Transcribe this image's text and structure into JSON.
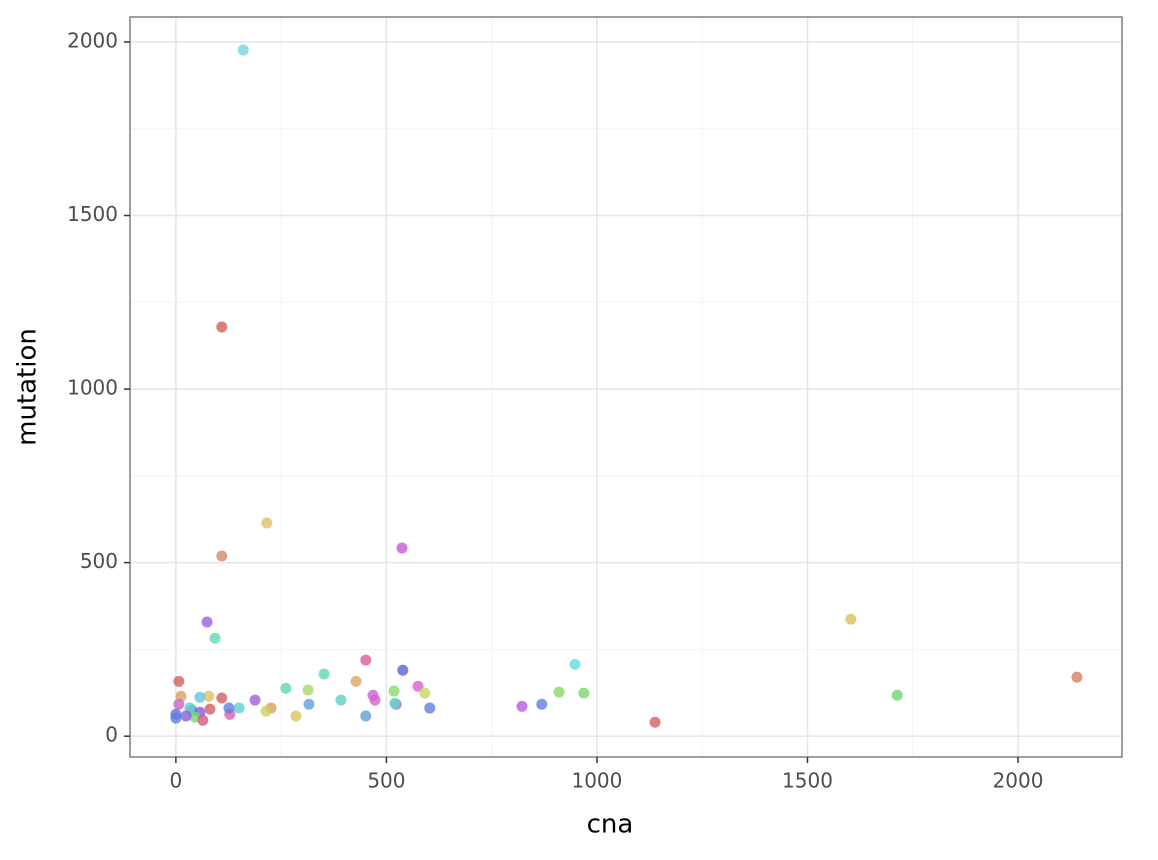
{
  "chart_data": {
    "type": "scatter",
    "xlabel": "cna",
    "ylabel": "mutation",
    "xlim": [
      -109,
      2247
    ],
    "ylim": [
      -60,
      2072
    ],
    "xticks": [
      0,
      500,
      1000,
      1500,
      2000
    ],
    "yticks": [
      0,
      500,
      1000,
      1500,
      2000
    ],
    "grid": true,
    "series": [
      {
        "x": [
          160,
          109,
          216,
          109,
          537,
          74,
          93,
          1603,
          2140,
          1713,
          1138,
          948,
          969,
          910,
          869,
          822,
          539,
          451,
          428,
          352,
          261,
          314,
          392,
          316,
          285,
          226,
          214,
          188,
          150,
          128,
          126,
          109,
          78,
          81,
          57,
          7,
          12,
          7,
          0,
          0,
          38,
          57,
          45,
          64,
          33,
          24,
          451,
          473,
          468,
          518,
          523,
          575,
          591,
          603,
          520
        ],
        "values": [
          1977,
          1179,
          614,
          519,
          542,
          329,
          282,
          337,
          170,
          118,
          40,
          207,
          124,
          127,
          92,
          86,
          190,
          219,
          158,
          179,
          138,
          133,
          104,
          92,
          58,
          81,
          72,
          104,
          81,
          63,
          81,
          110,
          115,
          78,
          112,
          158,
          115,
          92,
          63,
          52,
          75,
          69,
          55,
          46,
          81,
          58,
          58,
          104,
          118,
          130,
          92,
          144,
          124,
          81,
          95
        ],
        "colors": [
          "#6fd6dc",
          "#d25f5f",
          "#dcc060",
          "#d58a5f",
          "#c858d8",
          "#a05cdc",
          "#62d8b4",
          "#dcc060",
          "#d57f5f",
          "#6ed86a",
          "#d25f5f",
          "#62dcdc",
          "#78d86a",
          "#8ad86a",
          "#5f7fdc",
          "#b85cdc",
          "#5f5fd6",
          "#d85f9a",
          "#dca660",
          "#62d8b4",
          "#62d8a0",
          "#a8d860",
          "#62d0c0",
          "#5fa0dc",
          "#dcc060",
          "#dc9f60",
          "#ccd060",
          "#a05cdc",
          "#62d0d0",
          "#d85fa8",
          "#5f80dc",
          "#d25f5f",
          "#dcc060",
          "#d25f5f",
          "#62c8dc",
          "#d25f5f",
          "#dc9f60",
          "#d060d0",
          "#5f6fdc",
          "#5f7fdc",
          "#5f8fdc",
          "#8a5cdc",
          "#78d86a",
          "#d25f7f",
          "#62d0c8",
          "#8a5cdc",
          "#5f9fdc",
          "#d85fc0",
          "#d060d8",
          "#8ad86a",
          "#a05cdc",
          "#d85fd0",
          "#c8d860",
          "#5f80dc",
          "#62dcc0"
        ]
      }
    ]
  }
}
